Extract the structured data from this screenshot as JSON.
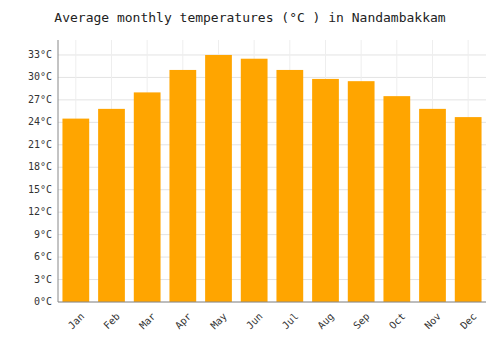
{
  "chart_data": {
    "type": "bar",
    "title": "Average monthly temperatures (°C ) in Nandambakkam",
    "categories": [
      "Jan",
      "Feb",
      "Mar",
      "Apr",
      "May",
      "Jun",
      "Jul",
      "Aug",
      "Sep",
      "Oct",
      "Nov",
      "Dec"
    ],
    "values": [
      24.5,
      25.8,
      28.0,
      31.0,
      33.0,
      32.5,
      31.0,
      29.8,
      29.5,
      27.5,
      25.8,
      24.7
    ],
    "color": "#FFA500",
    "ylim": [
      0,
      35
    ],
    "yticks": [
      {
        "value": 0,
        "label": "0°C"
      },
      {
        "value": 3,
        "label": "3°C"
      },
      {
        "value": 6,
        "label": "6°C"
      },
      {
        "value": 9,
        "label": "9°C"
      },
      {
        "value": 12,
        "label": "12°C"
      },
      {
        "value": 15,
        "label": "15°C"
      },
      {
        "value": 18,
        "label": "18°C"
      },
      {
        "value": 21,
        "label": "21°C"
      },
      {
        "value": 24,
        "label": "24°C"
      },
      {
        "value": 27,
        "label": "27°C"
      },
      {
        "value": 30,
        "label": "30°C"
      },
      {
        "value": 33,
        "label": "33°C"
      }
    ],
    "grid": true
  }
}
